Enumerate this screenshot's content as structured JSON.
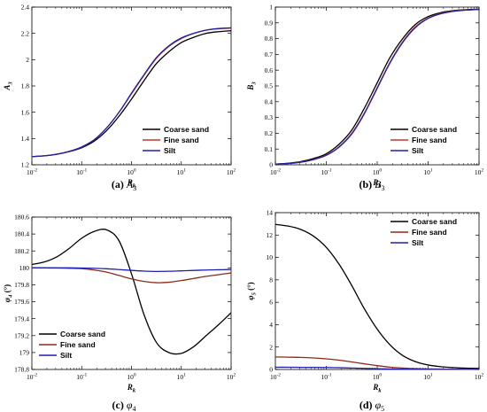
{
  "chart_data": [
    {
      "type": "line",
      "caption": "(a) A3",
      "ylabel": "A3",
      "xlabel": "Rk",
      "xscale": "log",
      "xlim": [
        0.01,
        100
      ],
      "ylim": [
        1.2,
        2.4
      ],
      "xticks": [
        "10^-2",
        "10^-1",
        "10^0",
        "10^1",
        "10^2"
      ],
      "yticks": [
        "1.2",
        "1.4",
        "1.6",
        "1.8",
        "2",
        "2.2",
        "2.4"
      ],
      "legend_position": "bottom-right",
      "series": [
        {
          "name": "Coarse sand",
          "color": "#000000",
          "x": [
            0.01,
            0.0178,
            0.0316,
            0.0562,
            0.1,
            0.178,
            0.316,
            0.562,
            1,
            1.78,
            3.16,
            5.62,
            10,
            17.8,
            31.6,
            56.2,
            100
          ],
          "y": [
            1.262,
            1.268,
            1.28,
            1.3,
            1.33,
            1.38,
            1.46,
            1.57,
            1.7,
            1.84,
            1.97,
            2.06,
            2.13,
            2.17,
            2.2,
            2.213,
            2.22
          ]
        },
        {
          "name": "Fine sand",
          "color": "#c0392b",
          "x": [
            0.01,
            0.0178,
            0.0316,
            0.0562,
            0.1,
            0.178,
            0.316,
            0.562,
            1,
            1.78,
            3.16,
            5.62,
            10,
            17.8,
            31.6,
            56.2,
            100
          ],
          "y": [
            1.262,
            1.268,
            1.281,
            1.302,
            1.335,
            1.39,
            1.48,
            1.6,
            1.74,
            1.88,
            2.01,
            2.1,
            2.16,
            2.2,
            2.225,
            2.235,
            2.24
          ]
        },
        {
          "name": "Silt",
          "color": "#1f1fb0",
          "x": [
            0.01,
            0.0178,
            0.0316,
            0.0562,
            0.1,
            0.178,
            0.316,
            0.562,
            1,
            1.78,
            3.16,
            5.62,
            10,
            17.8,
            31.6,
            56.2,
            100
          ],
          "y": [
            1.262,
            1.268,
            1.281,
            1.302,
            1.336,
            1.39,
            1.48,
            1.6,
            1.745,
            1.885,
            2.015,
            2.105,
            2.165,
            2.2,
            2.225,
            2.237,
            2.242
          ]
        }
      ]
    },
    {
      "type": "line",
      "caption": "(b) B3",
      "ylabel": "B3",
      "xlabel": "Rk",
      "xscale": "log",
      "xlim": [
        0.01,
        100
      ],
      "ylim": [
        0,
        1
      ],
      "xticks": [
        "10^-2",
        "10^-1",
        "10^0",
        "10^1",
        "10^2"
      ],
      "yticks": [
        "0",
        "0.1",
        "0.2",
        "0.3",
        "0.4",
        "0.5",
        "0.6",
        "0.7",
        "0.8",
        "0.9",
        "1"
      ],
      "legend_position": "bottom-right",
      "series": [
        {
          "name": "Coarse sand",
          "color": "#000000",
          "x": [
            0.01,
            0.0178,
            0.0316,
            0.0562,
            0.1,
            0.178,
            0.316,
            0.562,
            1,
            1.78,
            3.16,
            5.62,
            10,
            17.8,
            31.6,
            56.2,
            100
          ],
          "y": [
            0.005,
            0.01,
            0.02,
            0.04,
            0.07,
            0.13,
            0.22,
            0.36,
            0.52,
            0.68,
            0.8,
            0.89,
            0.94,
            0.965,
            0.978,
            0.984,
            0.987
          ]
        },
        {
          "name": "Fine sand",
          "color": "#c0392b",
          "x": [
            0.01,
            0.0178,
            0.0316,
            0.0562,
            0.1,
            0.178,
            0.316,
            0.562,
            1,
            1.78,
            3.16,
            5.62,
            10,
            17.8,
            31.6,
            56.2,
            100
          ],
          "y": [
            0.004,
            0.008,
            0.017,
            0.034,
            0.062,
            0.115,
            0.2,
            0.33,
            0.49,
            0.65,
            0.78,
            0.875,
            0.93,
            0.96,
            0.975,
            0.982,
            0.985
          ]
        },
        {
          "name": "Silt",
          "color": "#1f1fb0",
          "x": [
            0.01,
            0.0178,
            0.0316,
            0.0562,
            0.1,
            0.178,
            0.316,
            0.562,
            1,
            1.78,
            3.16,
            5.62,
            10,
            17.8,
            31.6,
            56.2,
            100
          ],
          "y": [
            0.004,
            0.008,
            0.016,
            0.033,
            0.06,
            0.112,
            0.195,
            0.325,
            0.485,
            0.645,
            0.775,
            0.87,
            0.928,
            0.958,
            0.973,
            0.981,
            0.985
          ]
        }
      ]
    },
    {
      "type": "line",
      "caption": "(c) φ4",
      "ylabel": "φ4 (°)",
      "xlabel": "Rk",
      "xscale": "log",
      "xlim": [
        0.01,
        100
      ],
      "ylim": [
        178.8,
        180.6
      ],
      "xticks": [
        "10^-2",
        "10^-1",
        "10^0",
        "10^1",
        "10^2"
      ],
      "yticks": [
        "178.8",
        "179",
        "179.2",
        "179.4",
        "179.6",
        "179.8",
        "180",
        "180.2",
        "180.4",
        "180.6"
      ],
      "legend_position": "bottom-left",
      "series": [
        {
          "name": "Coarse sand",
          "color": "#000000",
          "x": [
            0.01,
            0.0178,
            0.0316,
            0.0562,
            0.1,
            0.178,
            0.316,
            0.562,
            1,
            1.78,
            3.16,
            5.62,
            10,
            17.8,
            31.6,
            56.2,
            100
          ],
          "y": [
            180.04,
            180.07,
            180.13,
            180.23,
            180.35,
            180.43,
            180.45,
            180.32,
            179.93,
            179.45,
            179.12,
            179.0,
            178.99,
            179.07,
            179.2,
            179.33,
            179.47
          ]
        },
        {
          "name": "Fine sand",
          "color": "#8b2a1a",
          "x": [
            0.01,
            0.0178,
            0.0316,
            0.0562,
            0.1,
            0.178,
            0.316,
            0.562,
            1,
            1.78,
            3.16,
            5.62,
            10,
            17.8,
            31.6,
            56.2,
            100
          ],
          "y": [
            180.0,
            180.0,
            179.998,
            179.995,
            179.99,
            179.975,
            179.95,
            179.91,
            179.87,
            179.84,
            179.825,
            179.83,
            179.85,
            179.875,
            179.9,
            179.92,
            179.94
          ]
        },
        {
          "name": "Silt",
          "color": "#1f1fb0",
          "x": [
            0.01,
            0.0178,
            0.0316,
            0.0562,
            0.1,
            0.178,
            0.316,
            0.562,
            1,
            1.78,
            3.16,
            5.62,
            10,
            17.8,
            31.6,
            56.2,
            100
          ],
          "y": [
            180.0,
            180.0,
            180.0,
            180.0,
            179.998,
            179.995,
            179.99,
            179.98,
            179.97,
            179.962,
            179.958,
            179.96,
            179.965,
            179.97,
            179.975,
            179.978,
            179.98
          ]
        }
      ]
    },
    {
      "type": "line",
      "caption": "(d) φ5",
      "ylabel": "φ5 (°)",
      "xlabel": "Rk",
      "xscale": "log",
      "xlim": [
        0.01,
        100
      ],
      "ylim": [
        0,
        14
      ],
      "xticks": [
        "10^-2",
        "10^-1",
        "10^0",
        "10^1",
        "10^2"
      ],
      "yticks": [
        "0",
        "2",
        "4",
        "6",
        "8",
        "10",
        "12",
        "14"
      ],
      "legend_position": "top-right",
      "series": [
        {
          "name": "Coarse sand",
          "color": "#000000",
          "x": [
            0.01,
            0.0178,
            0.0316,
            0.0562,
            0.1,
            0.178,
            0.316,
            0.562,
            1,
            1.78,
            3.16,
            5.62,
            10,
            17.8,
            31.6,
            56.2,
            100
          ],
          "y": [
            12.95,
            12.8,
            12.5,
            11.9,
            10.9,
            9.4,
            7.5,
            5.4,
            3.6,
            2.2,
            1.25,
            0.7,
            0.4,
            0.25,
            0.17,
            0.12,
            0.09
          ]
        },
        {
          "name": "Fine sand",
          "color": "#8b2a1a",
          "x": [
            0.01,
            0.0178,
            0.0316,
            0.0562,
            0.1,
            0.178,
            0.316,
            0.562,
            1,
            1.78,
            3.16,
            5.62,
            10,
            17.8,
            31.6,
            56.2,
            100
          ],
          "y": [
            1.12,
            1.1,
            1.08,
            1.03,
            0.95,
            0.83,
            0.67,
            0.5,
            0.34,
            0.21,
            0.13,
            0.08,
            0.05,
            0.035,
            0.025,
            0.02,
            0.015
          ]
        },
        {
          "name": "Silt",
          "color": "#1f1fb0",
          "x": [
            0.01,
            0.0178,
            0.0316,
            0.0562,
            0.1,
            0.178,
            0.316,
            0.562,
            1,
            1.78,
            3.16,
            5.62,
            10,
            17.8,
            31.6,
            56.2,
            100
          ],
          "y": [
            0.2,
            0.2,
            0.19,
            0.185,
            0.175,
            0.16,
            0.13,
            0.1,
            0.07,
            0.045,
            0.03,
            0.02,
            0.012,
            0.008,
            0.006,
            0.005,
            0.004
          ]
        }
      ]
    }
  ]
}
